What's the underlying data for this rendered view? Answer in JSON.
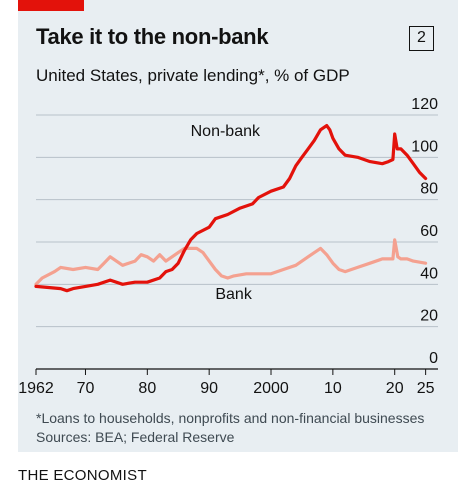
{
  "header": {
    "title": "Take it to the non-bank",
    "chart_number": "2",
    "subtitle": "United States, private lending*, % of GDP"
  },
  "footer": {
    "footnote": "*Loans to households, nonprofits and non-financial businesses",
    "sources": "Sources: BEA; Federal Reserve",
    "brand": "THE ECONOMIST"
  },
  "colors": {
    "panel": "#e8eef2",
    "accent": "#e3120b",
    "non_bank": "#e3120b",
    "bank": "#f4a190",
    "grid": "#b7c1c9",
    "axis": "#121212"
  },
  "chart_data": {
    "type": "line",
    "title": "Take it to the non-bank",
    "subtitle": "United States, private lending*, % of GDP",
    "xlabel": "",
    "ylabel": "",
    "xlim": [
      1962,
      2027
    ],
    "ylim": [
      0,
      120
    ],
    "y_axis_side": "right",
    "grid": "horizontal",
    "legend": "direct labels",
    "x_ticks": [
      {
        "value": 1962,
        "label": "1962"
      },
      {
        "value": 1970,
        "label": "70"
      },
      {
        "value": 1980,
        "label": "80"
      },
      {
        "value": 1990,
        "label": "90"
      },
      {
        "value": 2000,
        "label": "2000"
      },
      {
        "value": 2010,
        "label": "10"
      },
      {
        "value": 2020,
        "label": "20"
      },
      {
        "value": 2025,
        "label": "25"
      }
    ],
    "y_ticks": [
      0,
      20,
      40,
      60,
      80,
      100,
      120
    ],
    "series": [
      {
        "name": "Non-bank",
        "color": "#e3120b",
        "points": [
          [
            1962,
            39
          ],
          [
            1964,
            38.5
          ],
          [
            1966,
            38
          ],
          [
            1967,
            37
          ],
          [
            1968,
            38
          ],
          [
            1970,
            39
          ],
          [
            1972,
            40
          ],
          [
            1974,
            42
          ],
          [
            1976,
            40
          ],
          [
            1978,
            41
          ],
          [
            1980,
            41
          ],
          [
            1982,
            43
          ],
          [
            1983,
            46
          ],
          [
            1984,
            47
          ],
          [
            1985,
            50
          ],
          [
            1986,
            56
          ],
          [
            1987,
            61
          ],
          [
            1988,
            64
          ],
          [
            1990,
            67
          ],
          [
            1991,
            71
          ],
          [
            1993,
            73
          ],
          [
            1995,
            76
          ],
          [
            1997,
            78
          ],
          [
            1998,
            81
          ],
          [
            2000,
            84
          ],
          [
            2002,
            86
          ],
          [
            2003,
            90
          ],
          [
            2004,
            96
          ],
          [
            2005,
            100
          ],
          [
            2006,
            104
          ],
          [
            2007,
            108
          ],
          [
            2008,
            113
          ],
          [
            2009,
            115
          ],
          [
            2009.5,
            113
          ],
          [
            2010,
            109
          ],
          [
            2011,
            104
          ],
          [
            2012,
            101
          ],
          [
            2014,
            100
          ],
          [
            2016,
            98
          ],
          [
            2018,
            97
          ],
          [
            2019,
            98
          ],
          [
            2019.7,
            99
          ],
          [
            2020,
            111
          ],
          [
            2020.4,
            104
          ],
          [
            2021,
            104
          ],
          [
            2022,
            101
          ],
          [
            2023,
            97
          ],
          [
            2024,
            93
          ],
          [
            2025,
            90
          ]
        ]
      },
      {
        "name": "Bank",
        "color": "#f4a190",
        "points": [
          [
            1962,
            40
          ],
          [
            1963,
            43
          ],
          [
            1965,
            46
          ],
          [
            1966,
            48
          ],
          [
            1968,
            47
          ],
          [
            1970,
            48
          ],
          [
            1972,
            47
          ],
          [
            1973,
            50
          ],
          [
            1974,
            53
          ],
          [
            1975,
            51
          ],
          [
            1976,
            49
          ],
          [
            1978,
            51
          ],
          [
            1979,
            54
          ],
          [
            1980,
            53
          ],
          [
            1981,
            51
          ],
          [
            1982,
            54
          ],
          [
            1983,
            51
          ],
          [
            1985,
            55
          ],
          [
            1986,
            57
          ],
          [
            1987,
            57
          ],
          [
            1988,
            57
          ],
          [
            1989,
            55
          ],
          [
            1990,
            51
          ],
          [
            1991,
            47
          ],
          [
            1992,
            44
          ],
          [
            1993,
            43
          ],
          [
            1994,
            44
          ],
          [
            1996,
            45
          ],
          [
            1998,
            45
          ],
          [
            2000,
            45
          ],
          [
            2002,
            47
          ],
          [
            2004,
            49
          ],
          [
            2006,
            53
          ],
          [
            2008,
            57
          ],
          [
            2009,
            54
          ],
          [
            2010,
            50
          ],
          [
            2011,
            47
          ],
          [
            2012,
            46
          ],
          [
            2014,
            48
          ],
          [
            2016,
            50
          ],
          [
            2018,
            52
          ],
          [
            2019,
            52
          ],
          [
            2019.7,
            52
          ],
          [
            2020,
            61
          ],
          [
            2020.5,
            53
          ],
          [
            2021,
            52
          ],
          [
            2022,
            52
          ],
          [
            2023,
            51
          ],
          [
            2025,
            50
          ]
        ]
      }
    ],
    "annotations": [
      {
        "text": "Non-bank",
        "x": 1987,
        "y": 110
      },
      {
        "text": "Bank",
        "x": 1991,
        "y": 33
      }
    ]
  }
}
